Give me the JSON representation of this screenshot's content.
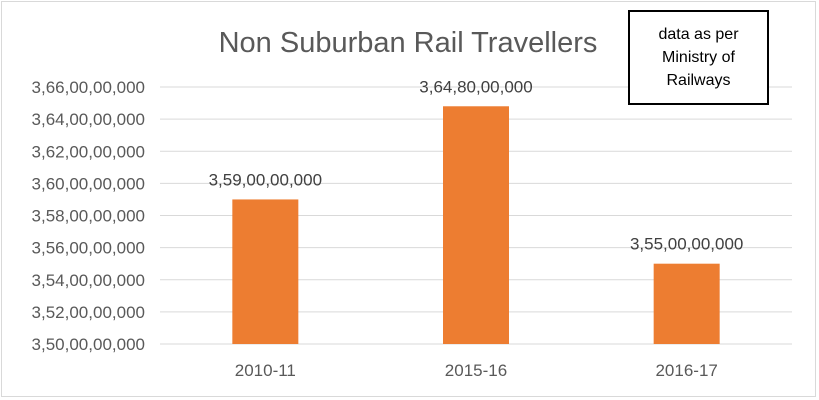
{
  "chart_data": {
    "type": "bar",
    "title": "Non Suburban Rail Travellers",
    "categories": [
      "2010-11",
      "2015-16",
      "2016-17"
    ],
    "values": [
      3590000000,
      3648000000,
      3550000000
    ],
    "value_labels": [
      "3,59,00,00,000",
      "3,64,80,00,000",
      "3,55,00,00,000"
    ],
    "ylim": [
      3500000000,
      3660000000
    ],
    "ytick_step": 20000000,
    "ytick_labels": [
      "3,50,00,00,000",
      "3,52,00,00,000",
      "3,54,00,00,000",
      "3,56,00,00,000",
      "3,58,00,00,000",
      "3,60,00,00,000",
      "3,62,00,00,000",
      "3,64,00,00,000",
      "3,66,00,00,000"
    ],
    "xlabel": "",
    "ylabel": "",
    "grid": true,
    "bar_color": "#ed7d31"
  },
  "annotation": {
    "lines": [
      "data as per",
      "Ministry of",
      "Railways"
    ]
  }
}
